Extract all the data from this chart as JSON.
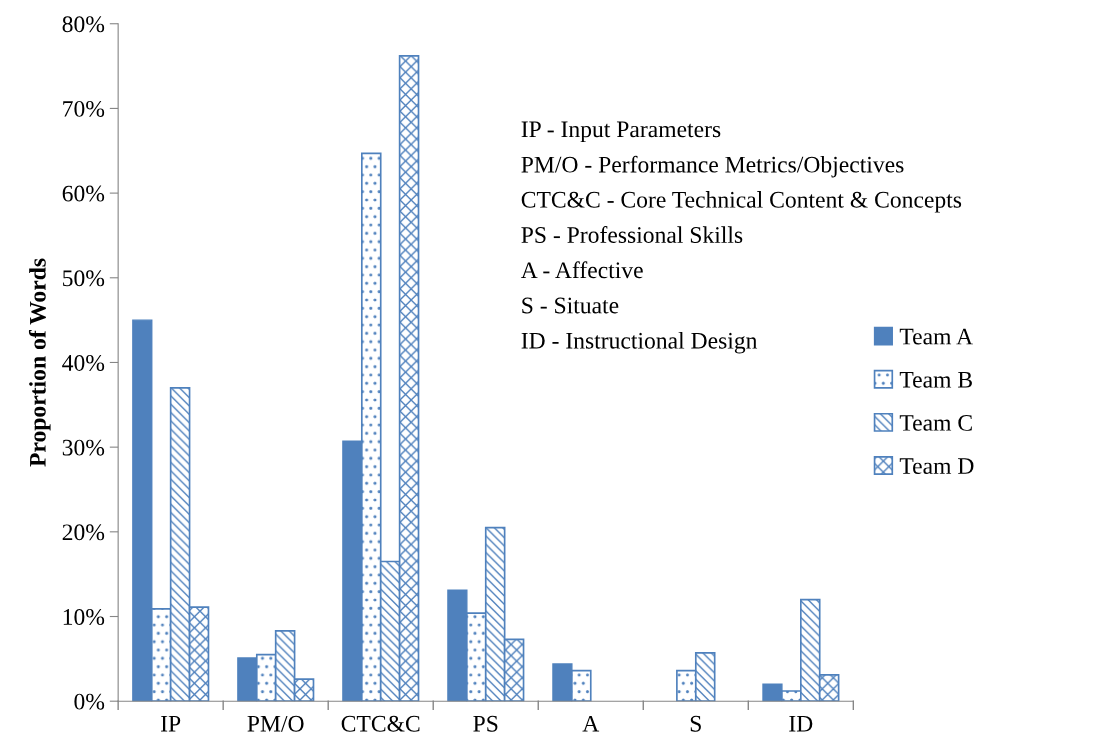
{
  "chart_data": {
    "type": "bar",
    "ylabel": "Proportion of Words",
    "categories": [
      "IP",
      "PM/O",
      "CTC&C",
      "PS",
      "A",
      "S",
      "ID"
    ],
    "series": [
      {
        "name": "Team A",
        "color": "#4f81bd",
        "values": [
          45,
          5.1,
          30.7,
          13.1,
          4.4,
          0,
          2.0
        ]
      },
      {
        "name": "Team B",
        "color": "#4f81bd",
        "values": [
          10.9,
          5.5,
          64.7,
          10.4,
          3.6,
          3.6,
          1.2
        ]
      },
      {
        "name": "Team C",
        "color": "#4f81bd",
        "values": [
          37,
          8.3,
          16.5,
          20.5,
          0,
          5.7,
          12.0
        ]
      },
      {
        "name": "Team D",
        "color": "#4f81bd",
        "values": [
          11.1,
          2.6,
          76.2,
          7.3,
          0,
          0,
          3.1
        ]
      }
    ],
    "ylim": [
      0,
      80
    ],
    "yticks": [
      {
        "value": 0,
        "label": "0%"
      },
      {
        "value": 10,
        "label": "10%"
      },
      {
        "value": 20,
        "label": "20%"
      },
      {
        "value": 30,
        "label": "30%"
      },
      {
        "value": 40,
        "label": "40%"
      },
      {
        "value": 50,
        "label": "50%"
      },
      {
        "value": 60,
        "label": "60%"
      },
      {
        "value": 70,
        "label": "70%"
      },
      {
        "value": 80,
        "label": "80%"
      }
    ],
    "grid": false,
    "legend": "right",
    "annotations": [
      "IP - Input Parameters",
      "PM/O - Performance Metrics/Objectives",
      "CTC&C - Core Technical Content & Concepts",
      "PS - Professional Skills",
      "A - Affective",
      "S - Situate",
      "ID - Instructional Design"
    ]
  }
}
